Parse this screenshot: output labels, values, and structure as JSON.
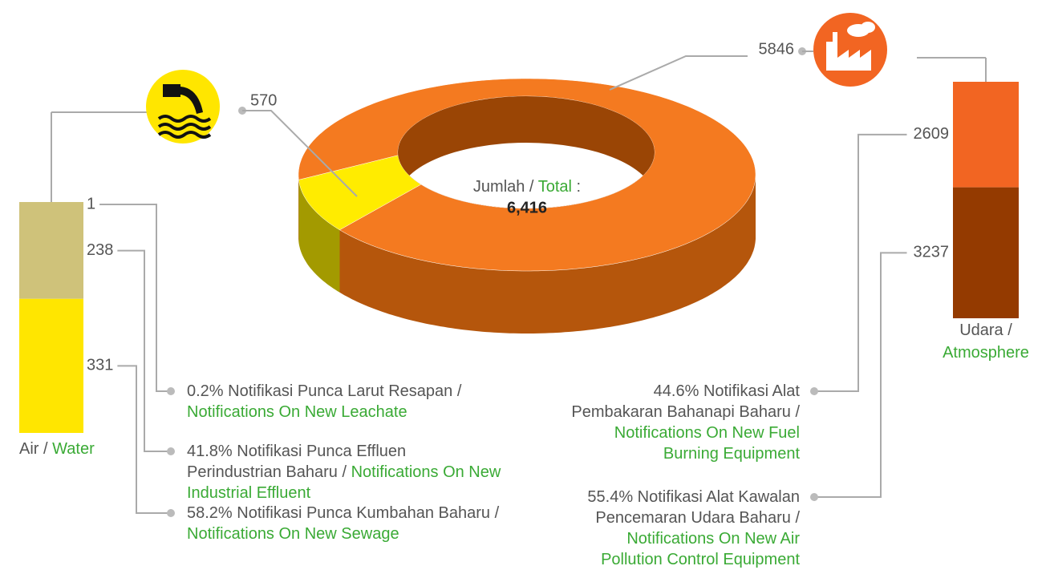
{
  "chart_data": [
    {
      "type": "donut",
      "values": [
        570,
        5846
      ],
      "colors": [
        "#ffec00",
        "#f47a20"
      ],
      "side_colors": [
        "#a39a00",
        "#b5560c"
      ],
      "total": {
        "value": 6416,
        "label": "6,416"
      },
      "center_text": {
        "ms": "Jumlah /",
        "en": "Total",
        "suffix": ":"
      }
    },
    {
      "type": "stacked-bar",
      "name": {
        "ms": "Air /",
        "en": "Water"
      },
      "values": [
        1,
        238,
        331
      ],
      "colors": [
        "#cfc27a",
        "#cfc27a",
        "#ffe600"
      ],
      "categories": [
        {
          "ms": "0.2% Notifikasi Punca Larut Resapan /",
          "en": "Notifications On New Leachate"
        },
        {
          "ms": "41.8% Notifikasi Punca Effluen Perindustrian Baharu /",
          "en": "Notifications On New Industrial Effluent"
        },
        {
          "ms": "58.2% Notifikasi Punca Kumbahan Baharu /",
          "en": "Notifications On New Sewage"
        }
      ]
    },
    {
      "type": "stacked-bar",
      "name": {
        "ms": "Udara /",
        "en": "Atmosphere"
      },
      "values": [
        2609,
        3237
      ],
      "colors": [
        "#f26522",
        "#943a00"
      ],
      "categories": [
        {
          "ms": "44.6% Notifikasi Alat Pembakaran Bahanapi Baharu /",
          "en": "Notifications On New Fuel Burning Equipment"
        },
        {
          "ms": "55.4% Notifikasi Alat Kawalan Pencemaran Udara Baharu /",
          "en": "Notifications On New Air Pollution Control Equipment"
        }
      ]
    }
  ]
}
